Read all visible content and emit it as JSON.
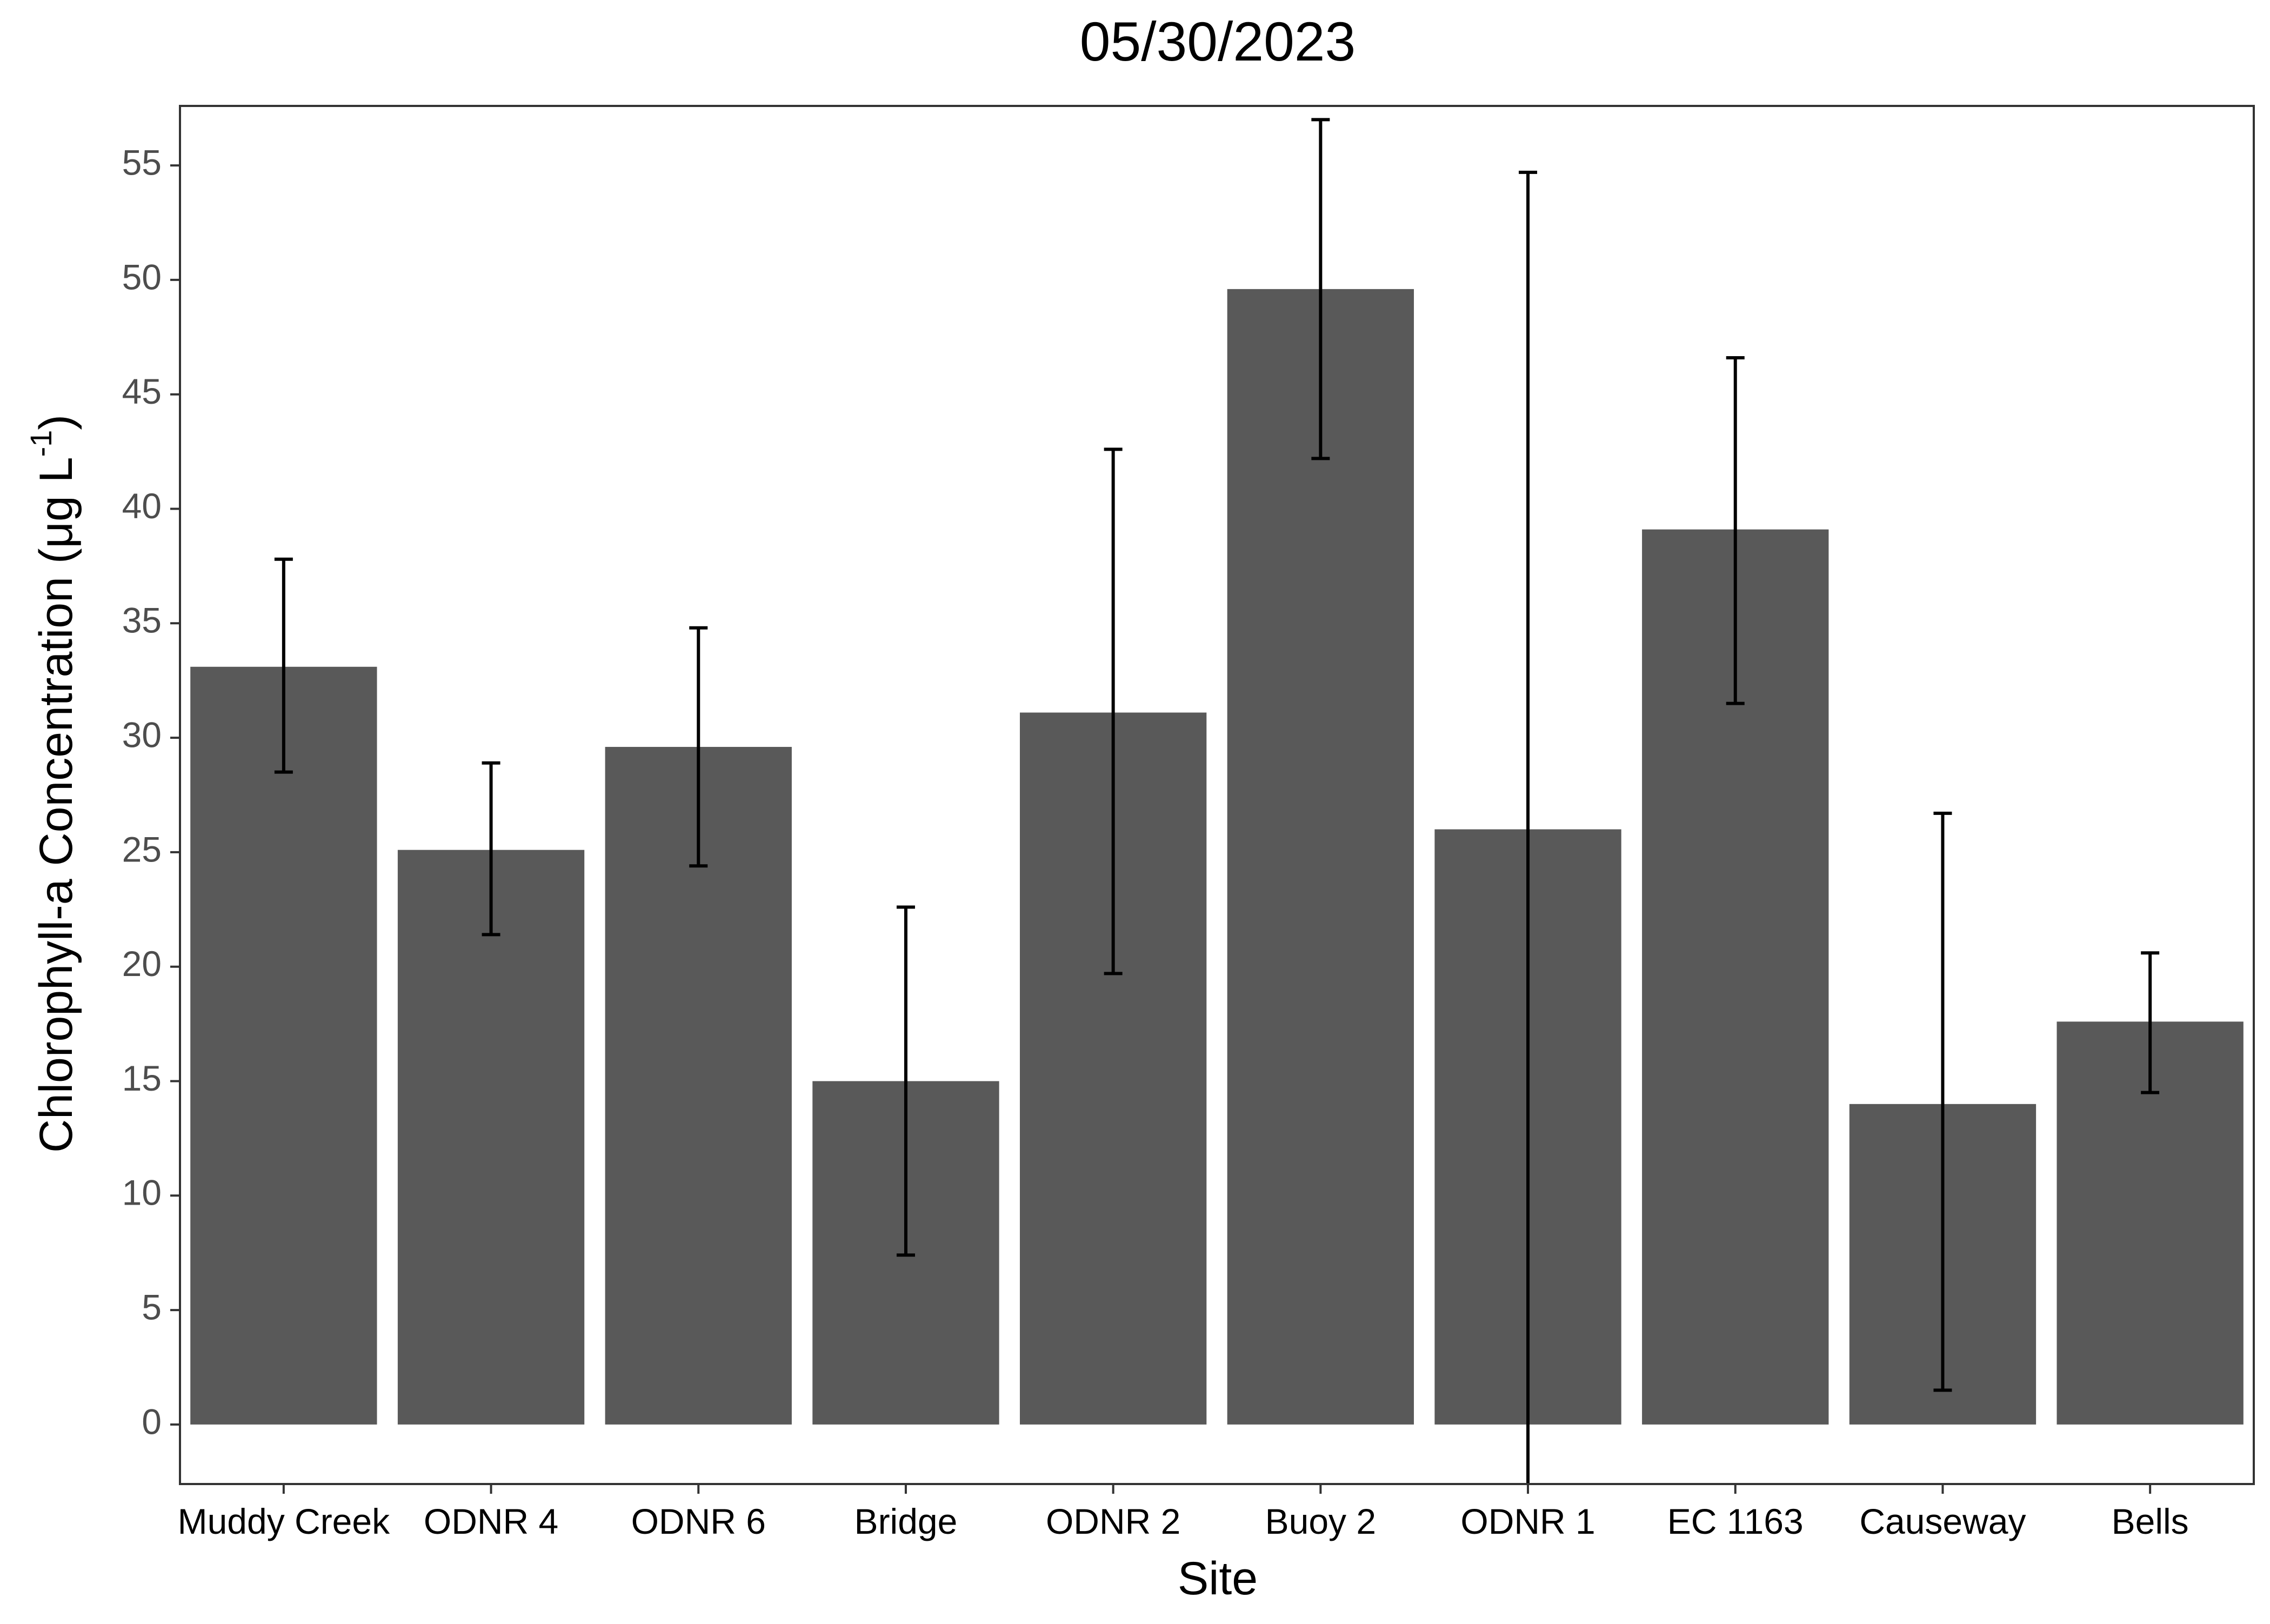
{
  "chart_data": {
    "type": "bar",
    "title": "05/30/2023",
    "xlabel": "Site",
    "ylabel": {
      "main": "Chlorophyll-a Concentration (μg L",
      "superscript": "-1",
      "close": ")"
    },
    "categories": [
      "Muddy Creek",
      "ODNR 4",
      "ODNR 6",
      "Bridge",
      "ODNR 2",
      "Buoy 2",
      "ODNR 1",
      "EC 1163",
      "Causeway",
      "Bells"
    ],
    "values": [
      33.1,
      25.1,
      29.6,
      15.0,
      31.1,
      49.6,
      26.0,
      39.1,
      14.0,
      17.6
    ],
    "error_bars": {
      "lower": [
        28.5,
        21.4,
        24.4,
        7.4,
        19.7,
        42.2,
        -3.0,
        31.5,
        1.5,
        14.5
      ],
      "upper": [
        37.8,
        28.9,
        34.8,
        22.6,
        42.6,
        57.0,
        54.7,
        46.6,
        26.7,
        20.6
      ]
    },
    "ylim": [
      -2.6,
      57.6
    ],
    "yticks": [
      0,
      5,
      10,
      15,
      20,
      25,
      30,
      35,
      40,
      45,
      50,
      55
    ],
    "grid": false,
    "legend": "none",
    "colors": {
      "bar": "#595959",
      "error_bar": "#000000",
      "axis": "#333333",
      "tick_label": "#4d4d4d",
      "text": "#000000"
    }
  }
}
